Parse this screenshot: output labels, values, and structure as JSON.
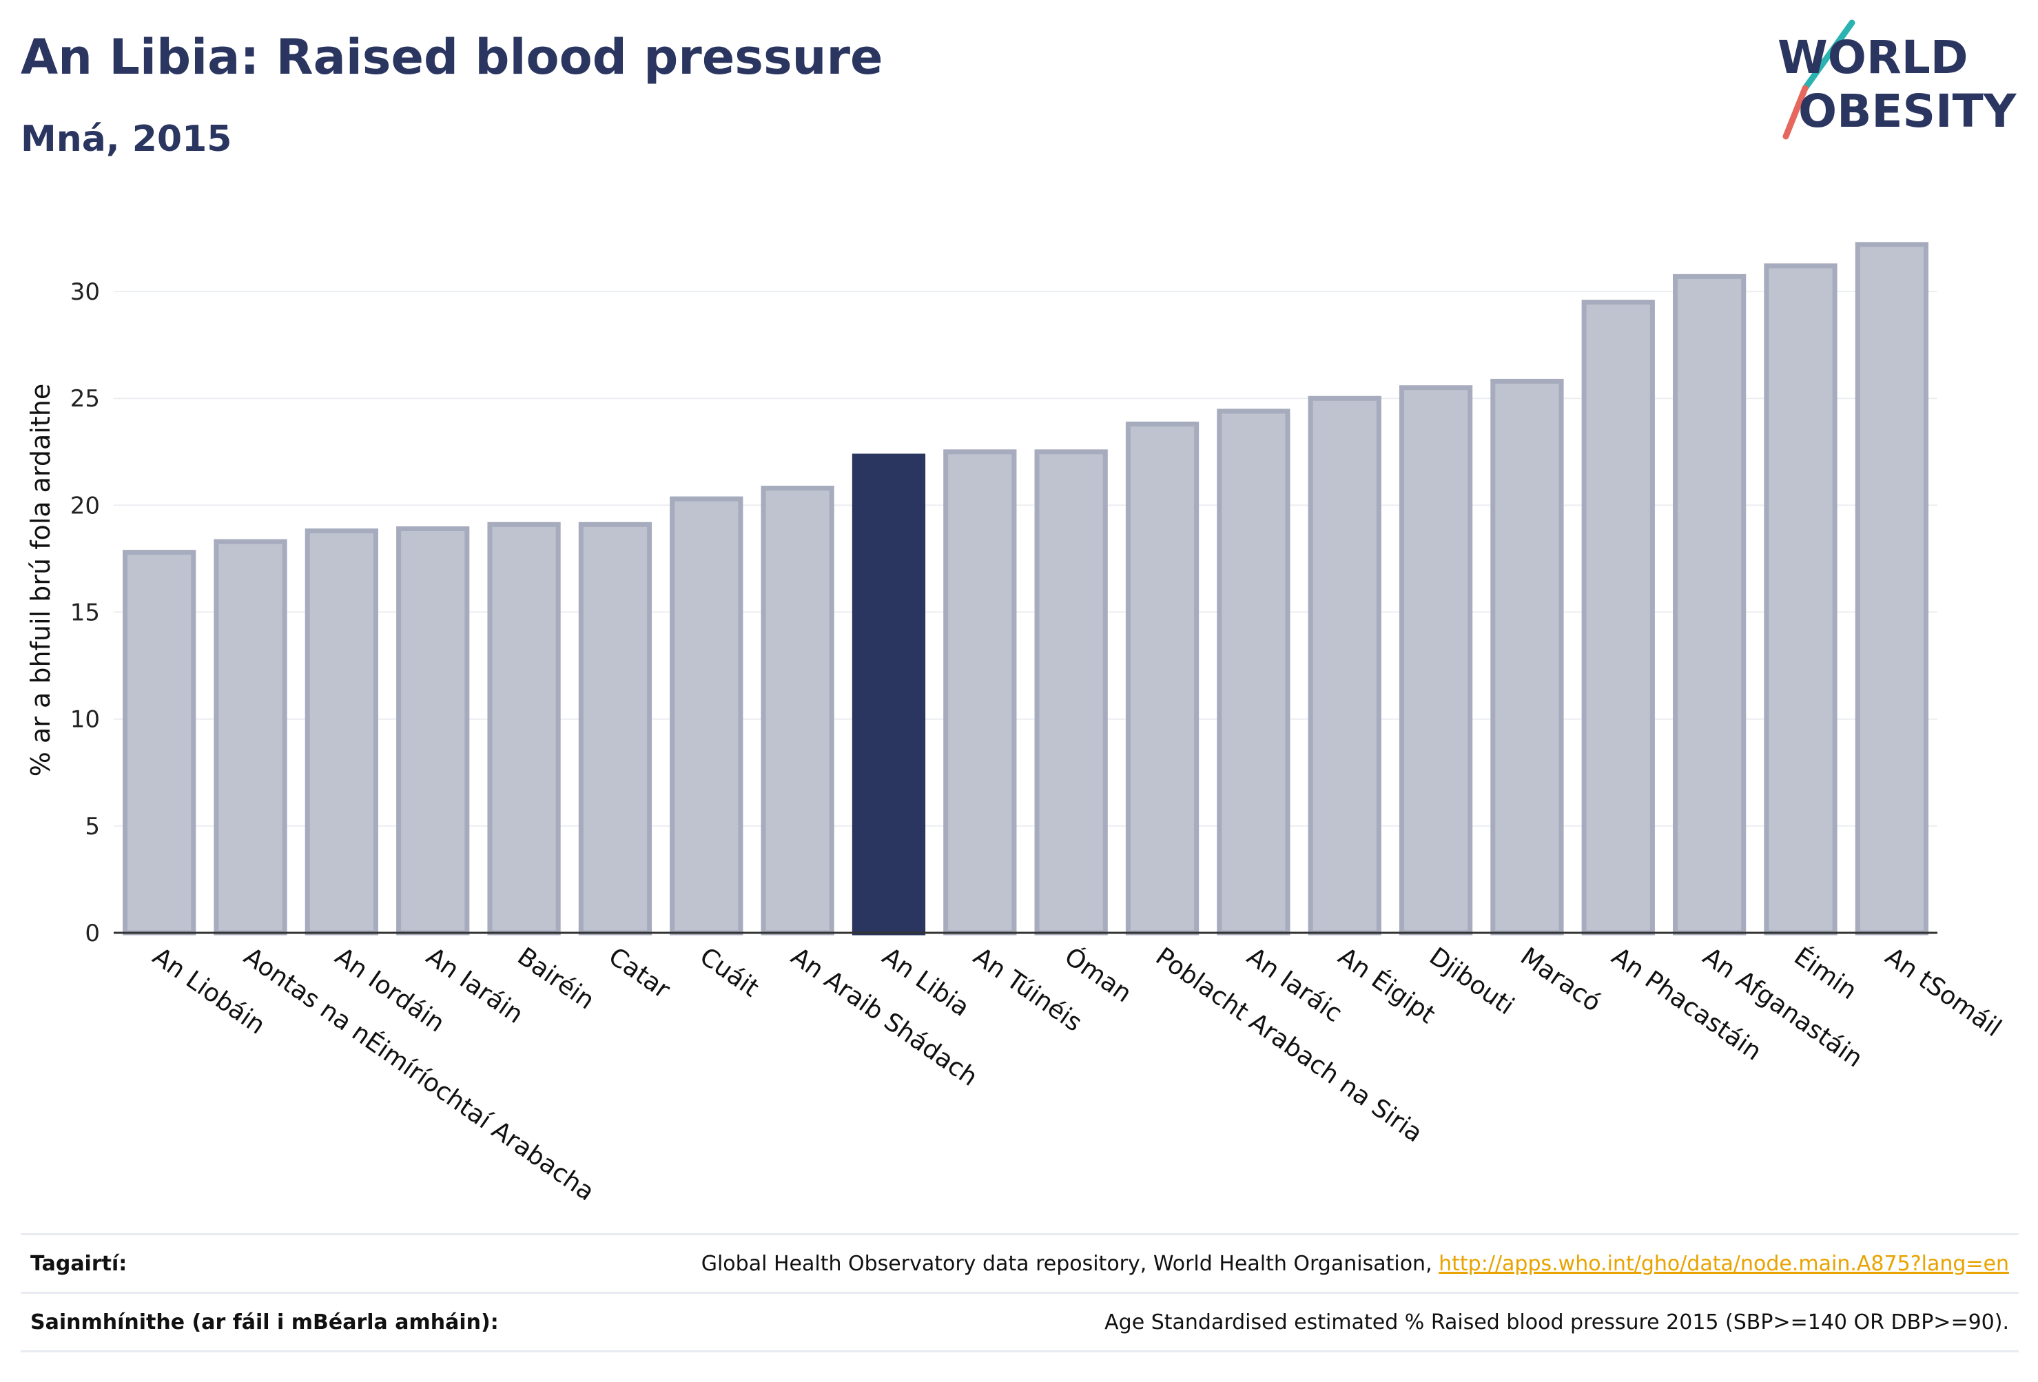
{
  "header": {
    "title": "An Libia: Raised blood pressure",
    "subtitle": "Mná, 2015"
  },
  "logo": {
    "line1": "WORLD",
    "line2": "OBESITY",
    "colors": {
      "text": "#2a3560",
      "slash_teal": "#2ab3b1",
      "slash_coral": "#e5675e"
    }
  },
  "chart_data": {
    "type": "bar",
    "title": "An Libia: Raised blood pressure",
    "subtitle": "Mná, 2015",
    "ylabel": "% ar a bhfuil brú fola ardaithe",
    "xlabel": "",
    "ylim": [
      0,
      33
    ],
    "yticks": [
      0,
      5,
      10,
      15,
      20,
      25,
      30
    ],
    "grid": true,
    "highlight_index": 8,
    "colors": {
      "bar": "#bfc3cf",
      "bar_border": "#a6abbd",
      "highlight": "#2a3560",
      "grid": "#eceef2",
      "axis": "#333333"
    },
    "categories": [
      "An Liobáin",
      "Aontas na nÉimíríochtaí Arabacha",
      "An Iordáin",
      "An Iaráin",
      "Bairéin",
      "Catar",
      "Cuáit",
      "An Araib Shádach",
      "An Libia",
      "An Túinéis",
      "Óman",
      "Poblacht Arabach na Siria",
      "An Iaráic",
      "An Éigipt",
      "Djibouti",
      "Maracó",
      "An Phacastáin",
      "An Afganastáin",
      "Éimin",
      "An tSomáil"
    ],
    "values": [
      17.8,
      18.3,
      18.8,
      18.9,
      19.1,
      19.1,
      20.3,
      20.8,
      22.3,
      22.5,
      22.5,
      23.8,
      24.4,
      25.0,
      25.5,
      25.8,
      29.5,
      30.7,
      31.2,
      32.2
    ]
  },
  "references": [
    {
      "label": "Tagairtí:",
      "text": "Global Health Observatory data repository, World Health Organisation, ",
      "link": "http://apps.who.int/gho/data/node.main.A875?lang=en"
    },
    {
      "label": "Sainmhínithe (ar fáil i mBéarla amháin):",
      "text": "Age Standardised estimated % Raised blood pressure 2015 (SBP>=140 OR DBP>=90).",
      "link": ""
    }
  ]
}
